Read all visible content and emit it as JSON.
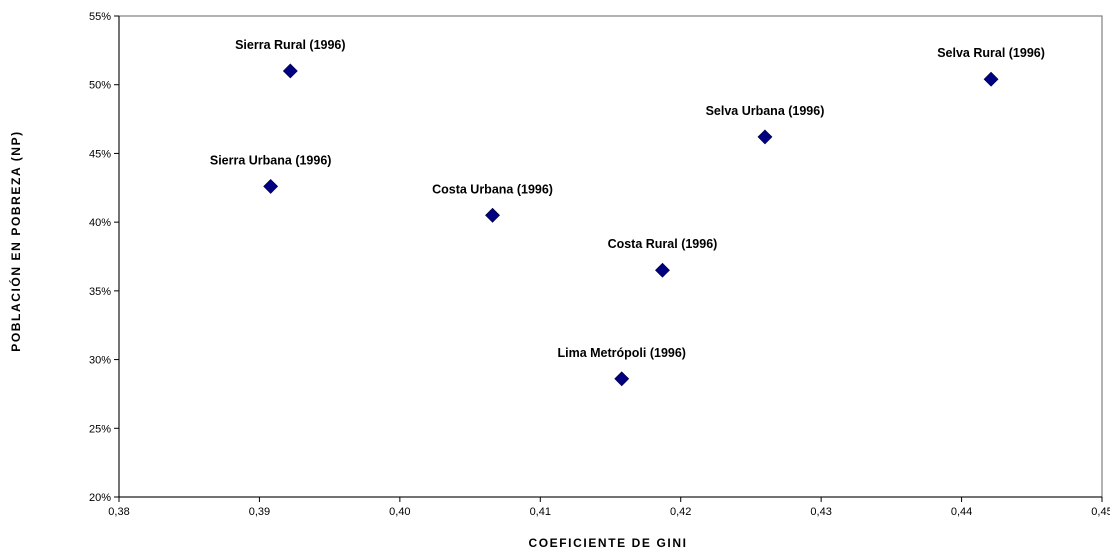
{
  "chart_data": {
    "type": "scatter",
    "title": "",
    "xlabel": "COEFICIENTE DE GINI",
    "ylabel": "POBLACIÓN EN POBREZA (NP)",
    "xlim": [
      0.38,
      0.45
    ],
    "ylim": [
      0.2,
      0.55
    ],
    "x_ticks": [
      0.38,
      0.39,
      0.4,
      0.41,
      0.42,
      0.43,
      0.44,
      0.45
    ],
    "x_tick_labels": [
      "0,38",
      "0,39",
      "0,40",
      "0,41",
      "0,42",
      "0,43",
      "0,44",
      "0,45"
    ],
    "y_ticks": [
      0.2,
      0.25,
      0.3,
      0.35,
      0.4,
      0.45,
      0.5,
      0.55
    ],
    "y_tick_labels": [
      "20%",
      "25%",
      "30%",
      "35%",
      "40%",
      "45%",
      "50%",
      "55%"
    ],
    "grid": false,
    "legend": "none",
    "marker": "diamond",
    "marker_color": "#000080",
    "points": [
      {
        "label": "Sierra Rural (1996)",
        "x": 0.3922,
        "y": 0.51
      },
      {
        "label": "Sierra Urbana  (1996)",
        "x": 0.3908,
        "y": 0.426
      },
      {
        "label": "Costa Urbana (1996)",
        "x": 0.4066,
        "y": 0.405
      },
      {
        "label": "Lima Metrópoli (1996)",
        "x": 0.4158,
        "y": 0.286
      },
      {
        "label": "Costa Rural (1996)",
        "x": 0.4187,
        "y": 0.365
      },
      {
        "label": "Selva Urbana (1996)",
        "x": 0.426,
        "y": 0.462
      },
      {
        "label": "Selva Rural (1996)",
        "x": 0.4421,
        "y": 0.504
      }
    ]
  }
}
